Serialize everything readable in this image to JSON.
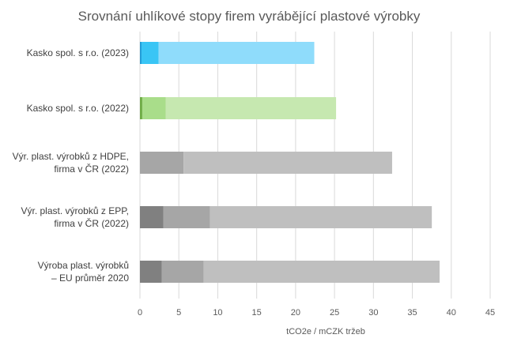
{
  "chart_data": {
    "type": "bar",
    "orientation": "horizontal",
    "stacked": true,
    "title": "Srovnání uhlíkové stopy firem vyrábějící plastové výrobky",
    "xlabel": "tCO2e / mCZK tržeb",
    "ylabel": "",
    "xlim": [
      0,
      45
    ],
    "x_ticks": [
      0,
      5,
      10,
      15,
      20,
      25,
      30,
      35,
      40,
      45
    ],
    "grid": "vertical",
    "legend": "none",
    "categories": [
      [
        "Kasko spol. s r.o.   (2023)"
      ],
      [
        "Kasko spol. s r.o.  (2022)"
      ],
      [
        "Výr. plast. výrobků z HDPE,",
        "firma v ČR (2022)"
      ],
      [
        "Výr. plast.  výrobků z EPP,",
        "firma v ČR (2022)"
      ],
      [
        "Výroba plast.  výrobků",
        "– EU průměr 2020"
      ]
    ],
    "segments": [
      [
        {
          "value": 0.2,
          "color": "#1f9bd7"
        },
        {
          "value": 2.2,
          "color": "#39c5f5"
        },
        {
          "value": 20.0,
          "color": "#8fdcfb"
        }
      ],
      [
        {
          "value": 0.3,
          "color": "#70ad47"
        },
        {
          "value": 3.0,
          "color": "#a9dd8a"
        },
        {
          "value": 21.9,
          "color": "#c6e8b0"
        }
      ],
      [
        {
          "value": 5.6,
          "color": "#a6a6a6"
        },
        {
          "value": 26.8,
          "color": "#bfbfbf"
        }
      ],
      [
        {
          "value": 3.0,
          "color": "#808080"
        },
        {
          "value": 6.0,
          "color": "#a6a6a6"
        },
        {
          "value": 28.5,
          "color": "#bfbfbf"
        }
      ],
      [
        {
          "value": 2.8,
          "color": "#808080"
        },
        {
          "value": 5.4,
          "color": "#a6a6a6"
        },
        {
          "value": 30.3,
          "color": "#bfbfbf"
        }
      ]
    ]
  }
}
